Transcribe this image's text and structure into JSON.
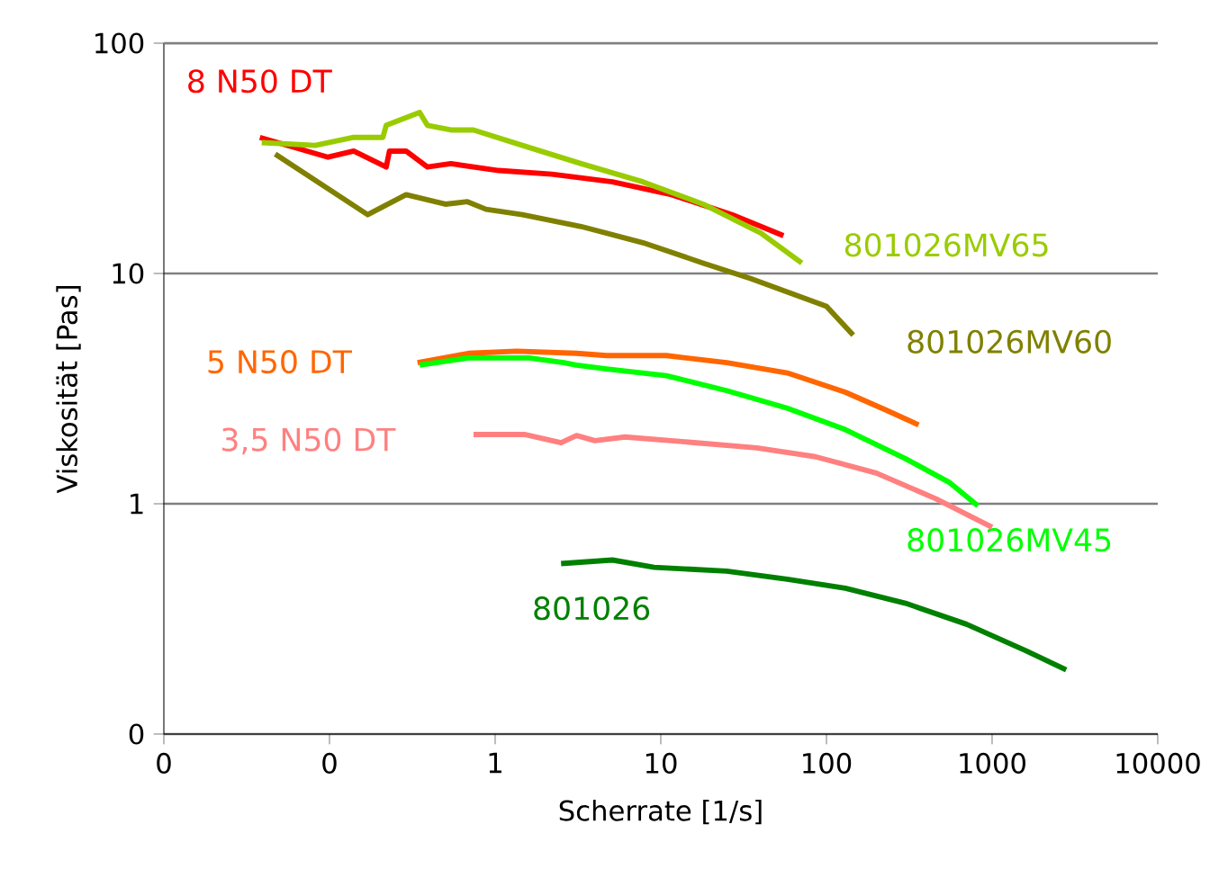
{
  "chart_data": {
    "type": "line",
    "xlabel": "Scherrate [1/s]",
    "ylabel": "Viskosität [Pas]",
    "log": "xy",
    "grid": "y",
    "legend": false,
    "marker": "none",
    "line_style": "solid",
    "xlim": [
      0.01,
      10000
    ],
    "ylim": [
      0.1,
      100
    ],
    "xticks": [
      {
        "value": 0.01,
        "label": "0"
      },
      {
        "value": 0.1,
        "label": "0"
      },
      1,
      10,
      100,
      1000,
      10000
    ],
    "yticks": [
      {
        "value": 0.1,
        "label": "0"
      },
      1,
      10,
      100
    ],
    "series": [
      {
        "name": "8 N50 DT",
        "color": "#ff0000",
        "x": [
          0.038,
          0.098,
          0.14,
          0.22,
          0.23,
          0.29,
          0.39,
          0.54,
          1.05,
          2.2,
          5.1,
          11.6,
          27,
          55
        ],
        "values": [
          39,
          32,
          34,
          29,
          34,
          34,
          29,
          30,
          28,
          27,
          25,
          22,
          18,
          14.6
        ]
      },
      {
        "name": "801026MV65",
        "color": "#99cc00",
        "x": [
          0.039,
          0.082,
          0.14,
          0.21,
          0.22,
          0.35,
          0.39,
          0.54,
          0.74,
          1.46,
          3.3,
          7.8,
          18,
          40,
          71
        ],
        "values": [
          37,
          36,
          39,
          39,
          44,
          50,
          44,
          42,
          42,
          36,
          30,
          25,
          20,
          15,
          11.1
        ]
      },
      {
        "name": "801026MV60",
        "color": "#808000",
        "x": [
          0.047,
          0.17,
          0.29,
          0.5,
          0.68,
          0.88,
          1.46,
          3.3,
          7.8,
          18,
          35,
          100,
          145
        ],
        "values": [
          33,
          18,
          22,
          20,
          20.5,
          19,
          18,
          16,
          13.6,
          11.1,
          9.5,
          7.2,
          5.4
        ]
      },
      {
        "name": "5 N50 DT",
        "color": "#ff6600",
        "x": [
          0.34,
          0.69,
          1.35,
          3.1,
          4.7,
          10.8,
          25,
          58,
          130,
          230,
          360
        ],
        "values": [
          4.1,
          4.5,
          4.6,
          4.5,
          4.4,
          4.4,
          4.1,
          3.7,
          3.05,
          2.55,
          2.2
        ]
      },
      {
        "name": "801026MV45",
        "color": "#00ff00",
        "x": [
          0.35,
          0.69,
          1.6,
          2.6,
          3.1,
          4.7,
          10.8,
          25,
          58,
          130,
          300,
          550,
          820
        ],
        "values": [
          4.0,
          4.3,
          4.3,
          4.1,
          4.0,
          3.85,
          3.6,
          3.1,
          2.6,
          2.1,
          1.57,
          1.24,
          0.98
        ]
      },
      {
        "name": "3,5 N50 DT",
        "color": "#ff8080",
        "x": [
          0.74,
          1.5,
          2.5,
          3.1,
          4.0,
          6.1,
          16.5,
          38,
          86,
          200,
          460,
          1000
        ],
        "values": [
          2.0,
          2.0,
          1.84,
          1.98,
          1.88,
          1.95,
          1.84,
          1.75,
          1.6,
          1.36,
          1.05,
          0.79
        ]
      },
      {
        "name": "801026",
        "color": "#008000",
        "x": [
          2.5,
          5.1,
          9.1,
          25,
          58,
          130,
          300,
          700,
          1600,
          2800
        ],
        "values": [
          0.55,
          0.57,
          0.53,
          0.51,
          0.47,
          0.43,
          0.37,
          0.3,
          0.23,
          0.19
        ]
      }
    ]
  }
}
